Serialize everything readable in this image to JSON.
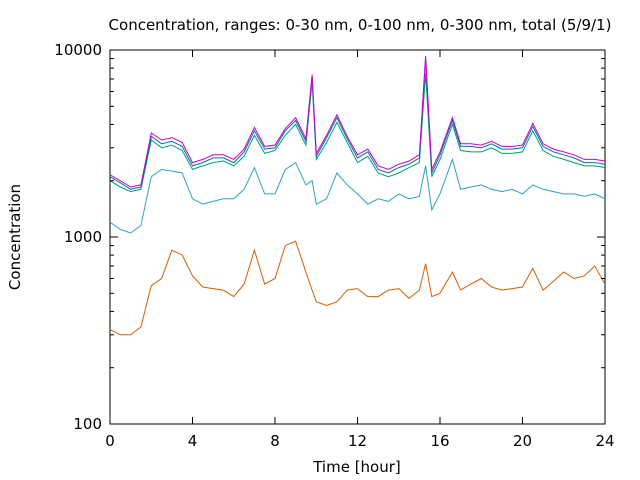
{
  "chart_data": {
    "type": "line",
    "title": "Concentration, ranges: 0-30 nm, 0-100 nm, 0-300 nm, total (5/9/1)",
    "xlabel": "Time [hour]",
    "ylabel": "Concentration",
    "xlim": [
      0,
      24
    ],
    "ylim": [
      100,
      10000
    ],
    "yscale": "log",
    "grid": false,
    "x_ticks": [
      0,
      4,
      8,
      12,
      16,
      20,
      24
    ],
    "x_tick_labels": [
      "0",
      "4",
      "8",
      "12",
      "16",
      "20",
      "24"
    ],
    "y_ticks": [
      100,
      1000,
      10000
    ],
    "y_tick_labels": [
      "100",
      "1000",
      "10000"
    ],
    "x": [
      0,
      0.5,
      1,
      1.5,
      2,
      2.5,
      3,
      3.5,
      4,
      4.5,
      5,
      5.5,
      6,
      6.5,
      7,
      7.5,
      8,
      8.5,
      9,
      9.5,
      9.8,
      10,
      10.5,
      11,
      11.5,
      12,
      12.5,
      13,
      13.5,
      14,
      14.5,
      15,
      15.3,
      15.6,
      16,
      16.6,
      17,
      17.5,
      18,
      18.5,
      19,
      19.5,
      20,
      20.5,
      21,
      21.5,
      22,
      22.5,
      23,
      23.5,
      24
    ],
    "series": [
      {
        "color": "#d55e00",
        "values": [
          320,
          300,
          300,
          330,
          550,
          600,
          850,
          800,
          620,
          540,
          530,
          520,
          480,
          560,
          850,
          560,
          600,
          900,
          950,
          650,
          520,
          450,
          430,
          450,
          520,
          530,
          480,
          480,
          520,
          530,
          470,
          520,
          720,
          480,
          500,
          650,
          520,
          560,
          600,
          540,
          520,
          530,
          540,
          680,
          520,
          580,
          650,
          600,
          620,
          700,
          560
        ]
      },
      {
        "color": "#2aa3c8",
        "values": [
          1200,
          1100,
          1050,
          1150,
          2100,
          2300,
          2250,
          2200,
          1600,
          1500,
          1550,
          1600,
          1600,
          1800,
          2350,
          1700,
          1700,
          2300,
          2500,
          1900,
          2000,
          1500,
          1600,
          2200,
          1900,
          1700,
          1500,
          1600,
          1550,
          1700,
          1600,
          1650,
          2400,
          1400,
          1700,
          2600,
          1800,
          1850,
          1900,
          1800,
          1750,
          1800,
          1700,
          1900,
          1800,
          1750,
          1700,
          1700,
          1650,
          1700,
          1600
        ]
      },
      {
        "color": "#009e73",
        "values": [
          2000,
          1850,
          1750,
          1800,
          3300,
          3000,
          3100,
          2900,
          2300,
          2400,
          2500,
          2550,
          2400,
          2700,
          3500,
          2800,
          2900,
          3500,
          4000,
          3100,
          6800,
          2600,
          3200,
          4100,
          3200,
          2500,
          2700,
          2200,
          2100,
          2200,
          2350,
          2500,
          7500,
          2100,
          2600,
          4000,
          2900,
          2850,
          2850,
          3000,
          2800,
          2800,
          2850,
          3700,
          2900,
          2700,
          2600,
          2500,
          2400,
          2400,
          2350
        ]
      },
      {
        "color": "#0072b2",
        "values": [
          2100,
          1950,
          1800,
          1850,
          3450,
          3150,
          3250,
          3050,
          2400,
          2500,
          2650,
          2650,
          2500,
          2850,
          3700,
          2950,
          3000,
          3700,
          4200,
          3250,
          7200,
          2700,
          3400,
          4350,
          3350,
          2650,
          2850,
          2300,
          2200,
          2350,
          2450,
          2650,
          9000,
          2200,
          2750,
          4200,
          3050,
          3050,
          3000,
          3150,
          2950,
          2950,
          3000,
          3900,
          3050,
          2850,
          2750,
          2650,
          2500,
          2500,
          2450
        ]
      },
      {
        "color": "#cc00cc",
        "values": [
          2150,
          2000,
          1850,
          1900,
          3600,
          3300,
          3400,
          3200,
          2500,
          2600,
          2750,
          2750,
          2600,
          2950,
          3850,
          3050,
          3100,
          3800,
          4350,
          3350,
          7400,
          2800,
          3500,
          4500,
          3450,
          2750,
          2950,
          2400,
          2300,
          2450,
          2550,
          2750,
          9300,
          2300,
          2850,
          4350,
          3150,
          3150,
          3100,
          3250,
          3050,
          3050,
          3100,
          4050,
          3150,
          2950,
          2850,
          2750,
          2600,
          2600,
          2550
        ]
      }
    ]
  }
}
